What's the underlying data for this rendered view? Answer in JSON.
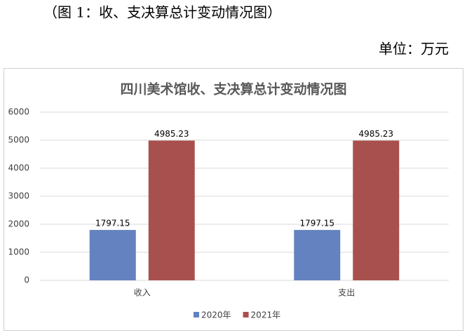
{
  "caption": "（图 1：收、支决算总计变动情况图）",
  "unit": "单位：万元",
  "chart_data": {
    "type": "bar",
    "title": "四川美术馆收、支决算总计变动情况图",
    "categories": [
      "收入",
      "支出"
    ],
    "series": [
      {
        "name": "2020年",
        "color": "#6382bf",
        "values": [
          1797.15,
          1797.15
        ]
      },
      {
        "name": "2021年",
        "color": "#a8504e",
        "values": [
          4985.23,
          4985.23
        ]
      }
    ],
    "ylim": [
      0,
      6000
    ],
    "yticks": [
      0,
      1000,
      2000,
      3000,
      4000,
      5000,
      6000
    ],
    "grid": true,
    "legend": "bottom",
    "data_labels": true
  }
}
